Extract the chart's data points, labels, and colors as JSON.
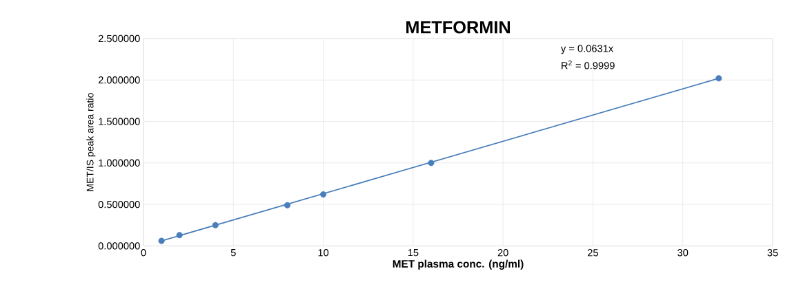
{
  "chart_data": {
    "type": "scatter",
    "title": "METFORMIN",
    "xlabel": "MET plasma conc. (ng/ml)",
    "ylabel": "MET/IS peak area ratio",
    "annotations": [
      "y = 0.0631x",
      "R$^{2}$ = 0.9999"
    ],
    "series": [
      {
        "color": "#4a7ebb",
        "marker": "circle",
        "x": [
          1,
          2,
          4,
          8,
          10,
          16,
          32
        ],
        "values": [
          0.06,
          0.13,
          0.25,
          0.49,
          0.62,
          1.0,
          2.02
        ]
      },
      {
        "type": "line",
        "color": "#4a7ebb",
        "marker": "none",
        "line_style": "solid",
        "x": [
          1,
          32
        ],
        "values": [
          0.06,
          2.02
        ]
      }
    ],
    "xlim": [
      0,
      35
    ],
    "xticks": [
      0,
      5,
      10,
      15,
      20,
      25,
      30,
      35
    ],
    "ylim": [
      0,
      2.5
    ],
    "yticks": [
      {
        "value": 0,
        "label": "0.000000"
      },
      {
        "value": 0.5,
        "label": "0.500000"
      },
      {
        "value": 1,
        "label": "1.000000"
      },
      {
        "value": 1.5,
        "label": "1.500000"
      },
      {
        "value": 2,
        "label": "2.000000"
      },
      {
        "value": 2.5,
        "label": "2.500000"
      }
    ],
    "grid": true
  }
}
